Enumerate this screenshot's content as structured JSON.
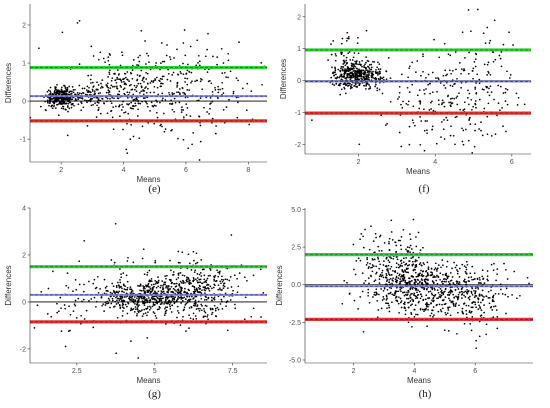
{
  "chart_data": [
    {
      "id": "e",
      "type": "scatter",
      "panel_label": "(e)",
      "xlabel": "Means",
      "ylabel": "Differences",
      "xlim": [
        1.0,
        8.6
      ],
      "ylim": [
        -1.6,
        2.55
      ],
      "xticks": [
        2,
        4,
        6,
        8
      ],
      "yticks": [
        -1,
        0,
        1,
        2
      ],
      "mean_line": 0.13,
      "upper_limit": 0.88,
      "lower_limit": -0.52,
      "zero_line": 0.0,
      "colors": {
        "mean": "#3333aa",
        "upper": "#33cc33",
        "lower": "#dd3333",
        "points": "#000000"
      },
      "point_clusters": [
        {
          "cx": 2.0,
          "cy": 0.1,
          "sx": 0.25,
          "sy": 0.12,
          "n": 340
        },
        {
          "cx": 3.0,
          "cy": 0.15,
          "sx": 0.4,
          "sy": 0.15,
          "n": 120
        },
        {
          "cx": 4.2,
          "cy": 0.35,
          "sx": 0.6,
          "sy": 0.45,
          "n": 220
        },
        {
          "cx": 6.2,
          "cy": 0.3,
          "sx": 0.9,
          "sy": 0.55,
          "n": 200
        },
        {
          "cx": 5.0,
          "cy": 0.4,
          "sx": 1.8,
          "sy": 0.9,
          "n": 90
        }
      ]
    },
    {
      "id": "f",
      "type": "scatter",
      "panel_label": "(f)",
      "xlabel": "Means",
      "ylabel": "Differences",
      "xlim": [
        0.6,
        6.5
      ],
      "ylim": [
        -2.3,
        2.4
      ],
      "xticks": [
        2,
        4,
        6
      ],
      "yticks": [
        -2,
        -1,
        0,
        1,
        2
      ],
      "mean_line": -0.03,
      "upper_limit": 0.96,
      "lower_limit": -1.02,
      "zero_line": 0.0,
      "colors": {
        "mean": "#3333aa",
        "upper": "#33cc33",
        "lower": "#dd3333",
        "points": "#000000"
      },
      "point_clusters": [
        {
          "cx": 2.0,
          "cy": 0.15,
          "sx": 0.3,
          "sy": 0.22,
          "n": 420
        },
        {
          "cx": 1.6,
          "cy": 0.6,
          "sx": 0.25,
          "sy": 0.5,
          "n": 60
        },
        {
          "cx": 4.3,
          "cy": -0.6,
          "sx": 0.8,
          "sy": 0.7,
          "n": 220
        },
        {
          "cx": 5.2,
          "cy": 0.0,
          "sx": 0.6,
          "sy": 0.9,
          "n": 80
        }
      ]
    },
    {
      "id": "g",
      "type": "scatter",
      "panel_label": "(g)",
      "xlabel": "Means",
      "ylabel": "Differences",
      "xlim": [
        1.0,
        8.6
      ],
      "ylim": [
        -2.6,
        4.0
      ],
      "xticks": [
        2.5,
        5.0,
        7.5
      ],
      "yticks": [
        -2,
        0,
        2,
        4
      ],
      "mean_line": 0.3,
      "upper_limit": 1.5,
      "lower_limit": -0.85,
      "zero_line": 0.0,
      "colors": {
        "mean": "#3333aa",
        "upper": "#33cc33",
        "lower": "#dd3333",
        "points": "#000000"
      },
      "point_clusters": [
        {
          "cx": 4.6,
          "cy": 0.2,
          "sx": 0.7,
          "sy": 0.35,
          "n": 420
        },
        {
          "cx": 6.3,
          "cy": 0.5,
          "sx": 0.8,
          "sy": 0.6,
          "n": 380
        },
        {
          "cx": 5.0,
          "cy": 0.4,
          "sx": 1.7,
          "sy": 1.0,
          "n": 140
        },
        {
          "cx": 2.3,
          "cy": -0.2,
          "sx": 0.6,
          "sy": 0.7,
          "n": 40
        }
      ]
    },
    {
      "id": "h",
      "type": "scatter",
      "panel_label": "(h)",
      "xlabel": "Means",
      "ylabel": "Differences",
      "xlim": [
        0.4,
        7.9
      ],
      "ylim": [
        -5.2,
        5.1
      ],
      "xticks": [
        2,
        4,
        6
      ],
      "yticks": [
        -5.0,
        -2.5,
        0.0,
        2.5,
        5.0
      ],
      "ytick_labels": [
        "-5.0",
        "-2.5",
        "0.0",
        "2.5",
        "5.0"
      ],
      "mean_line": -0.1,
      "upper_limit": 2.0,
      "lower_limit": -2.3,
      "zero_line": 0.0,
      "colors": {
        "mean": "#3333aa",
        "upper": "#33cc33",
        "lower": "#dd3333",
        "points": "#000000"
      },
      "point_clusters": [
        {
          "cx": 3.6,
          "cy": 0.3,
          "sx": 0.7,
          "sy": 1.1,
          "n": 380
        },
        {
          "cx": 5.0,
          "cy": -0.4,
          "sx": 0.9,
          "sy": 0.9,
          "n": 420
        },
        {
          "cx": 3.3,
          "cy": 2.0,
          "sx": 0.6,
          "sy": 1.2,
          "n": 90
        },
        {
          "cx": 6.0,
          "cy": -1.0,
          "sx": 0.7,
          "sy": 1.0,
          "n": 120
        }
      ]
    }
  ]
}
